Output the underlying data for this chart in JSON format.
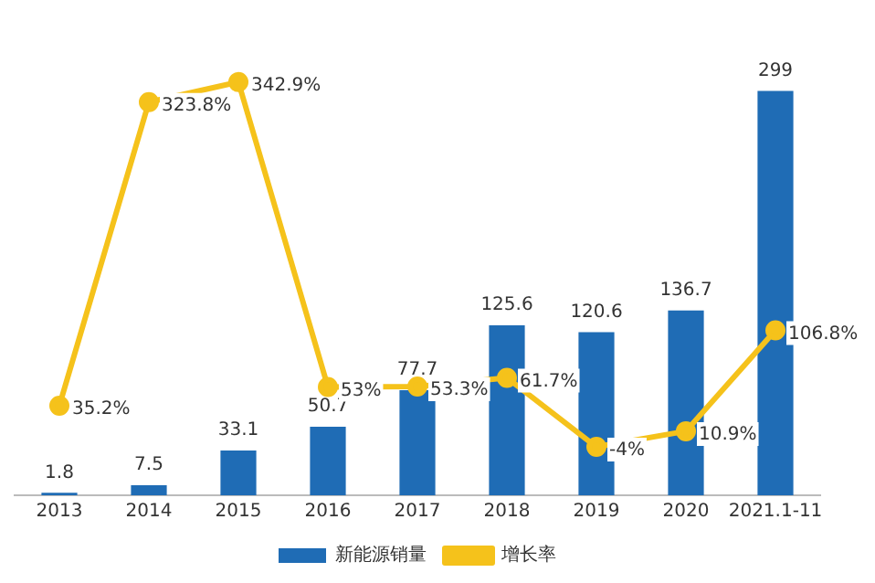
{
  "chart_data": {
    "type": "bar",
    "categories": [
      "2013",
      "2014",
      "2015",
      "2016",
      "2017",
      "2018",
      "2019",
      "2020",
      "2021.1-11"
    ],
    "series": [
      {
        "name": "新能源销量",
        "color": "#1f6cb5",
        "values": [
          1.8,
          7.5,
          33.1,
          50.7,
          77.7,
          125.6,
          120.6,
          136.7,
          299
        ],
        "value_labels": [
          "1.8",
          "7.5",
          "33.1",
          "50.7",
          "77.7",
          "125.6",
          "120.6",
          "136.7",
          "299"
        ]
      },
      {
        "name": "增长率",
        "type": "line",
        "axis": "y2",
        "color": "#f5c21b",
        "values": [
          35.2,
          323.8,
          342.9,
          53,
          53.3,
          61.7,
          -4,
          10.9,
          106.8
        ],
        "value_labels": [
          "35.2%",
          "323.8%",
          "342.9%",
          "53%",
          "53.3%",
          "61.7%",
          "-4%",
          "10.9%",
          "106.8%"
        ]
      }
    ],
    "marker": "circle",
    "grid": false,
    "legend": "bottom"
  }
}
